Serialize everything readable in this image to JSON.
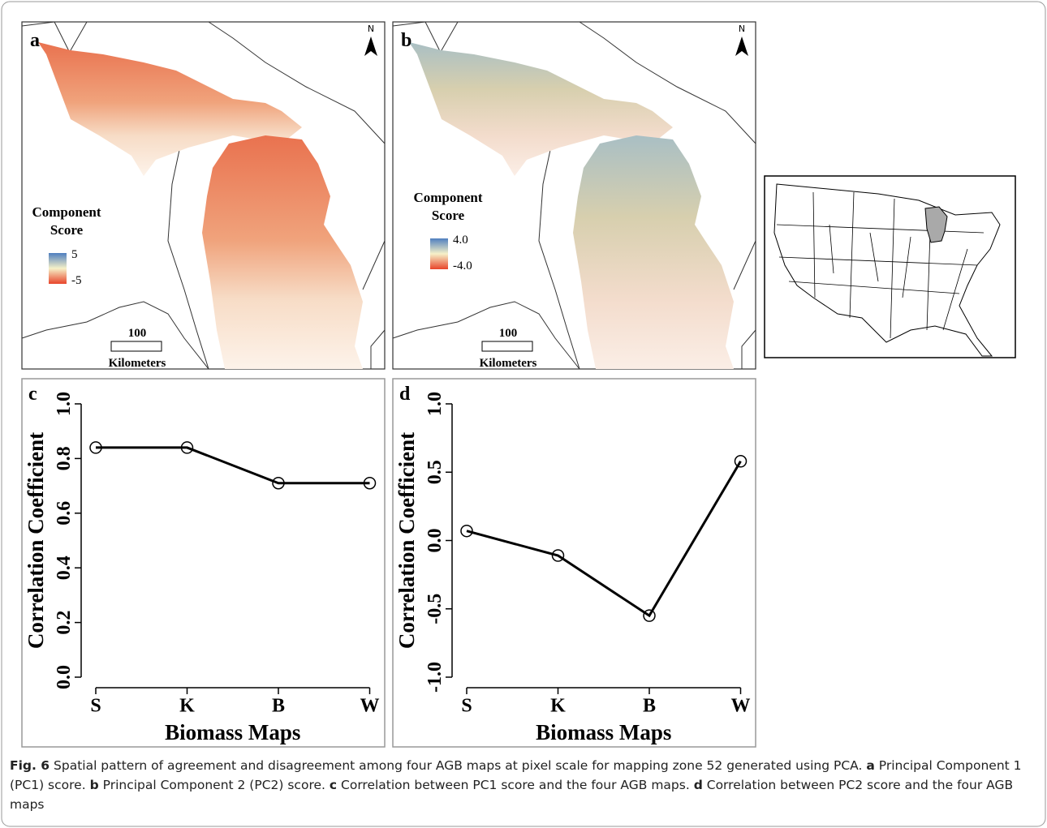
{
  "maps": [
    {
      "letter": "a",
      "legend_title": [
        "Component",
        "Score"
      ],
      "legend_max": "5",
      "legend_min": "-5",
      "scale": "100",
      "scale_unit": "Kilometers",
      "north": "N"
    },
    {
      "letter": "b",
      "legend_title": [
        "Component",
        "Score"
      ],
      "legend_max": "4.0",
      "legend_min": "-4.0",
      "scale": "100",
      "scale_unit": "Kilometers",
      "north": "N"
    }
  ],
  "chart_data": [
    {
      "type": "line",
      "label": "c",
      "y_label": "Correlation Coefficient",
      "x_label": "Biomass Maps",
      "categories": [
        "S",
        "K",
        "B",
        "W"
      ],
      "values": [
        0.84,
        0.84,
        0.71,
        0.71
      ],
      "color": "#000000",
      "ylim": [
        0,
        1
      ],
      "yticks": [
        {
          "value": 0,
          "label": "0.0"
        },
        0.2,
        0.4,
        0.6,
        0.8,
        {
          "value": 1,
          "label": "1.0"
        }
      ]
    },
    {
      "type": "line",
      "label": "d",
      "y_label": "Correlation Coefficient",
      "x_label": "Biomass Maps",
      "categories": [
        "S",
        "K",
        "B",
        "W"
      ],
      "values": [
        0.07,
        -0.11,
        -0.55,
        0.58
      ],
      "color": "#000000",
      "ylim": [
        -1,
        1
      ],
      "yticks": [
        {
          "value": -1,
          "label": "-1.0"
        },
        -0.5,
        {
          "value": 0,
          "label": "0.0"
        },
        0.5,
        {
          "value": 1,
          "label": "1.0"
        }
      ]
    }
  ],
  "caption": {
    "label": "Fig. 6",
    "intro": "Spatial pattern of agreement and disagreement among four AGB maps at pixel scale for mapping zone 52 generated using PCA.",
    "items": [
      {
        "letter": "a",
        "text": "Principal Component 1 (PC1) score."
      },
      {
        "letter": "b",
        "text": "Principal Component 2 (PC2) score."
      },
      {
        "letter": "c",
        "text": "Correlation between PC1 score and the four AGB maps."
      },
      {
        "letter": "d",
        "text": "Correlation between PC2 score and the four AGB maps"
      }
    ]
  }
}
